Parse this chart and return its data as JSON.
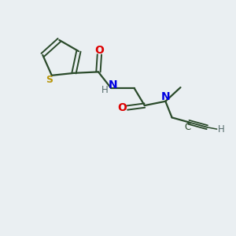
{
  "background_color": "#eaeff2",
  "bond_color": "#2a4a2a",
  "S_color": "#b8960a",
  "N_color": "#0000e0",
  "O_color": "#dd0000",
  "C_color": "#2a4a2a",
  "H_color": "#556b6b",
  "figsize": [
    3.0,
    3.0
  ],
  "dpi": 100,
  "xlim": [
    0,
    10
  ],
  "ylim": [
    0,
    10
  ]
}
